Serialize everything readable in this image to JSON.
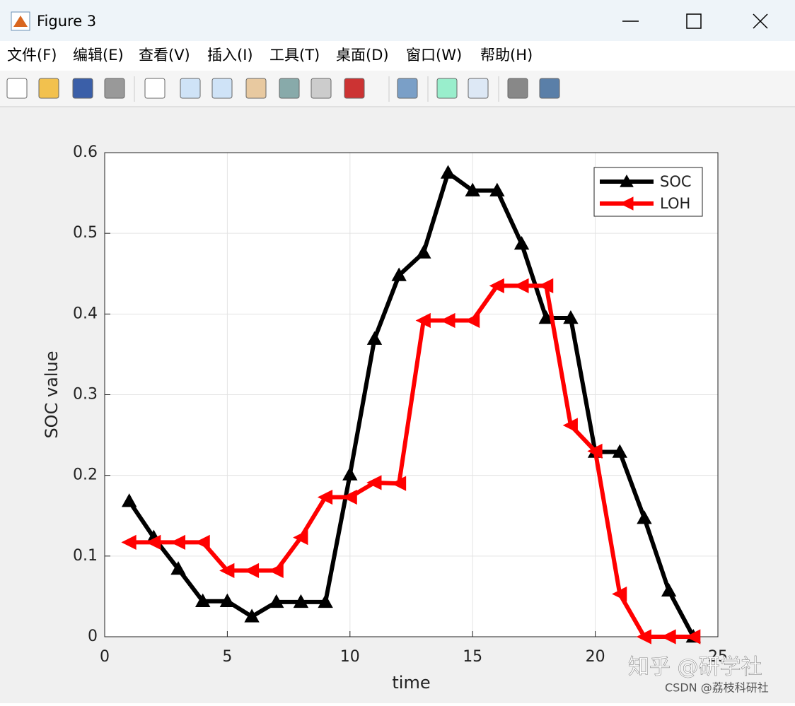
{
  "window": {
    "title": "Figure 3",
    "menu": [
      "文件(F)",
      "编辑(E)",
      "查看(V)",
      "插入(I)",
      "工具(T)",
      "桌面(D)",
      "窗口(W)",
      "帮助(H)"
    ]
  },
  "watermark": [
    "知乎 @研学社",
    "CSDN @荔枝科研社"
  ],
  "chart_data": {
    "type": "line",
    "x_label": "time",
    "y_label": "SOC value",
    "x": [
      1,
      2,
      3,
      4,
      5,
      6,
      7,
      8,
      9,
      10,
      11,
      12,
      13,
      14,
      15,
      16,
      17,
      18,
      19,
      20,
      21,
      22,
      23,
      24
    ],
    "series": [
      {
        "name": "SOC",
        "color": "#000000",
        "marker": "triangle-up",
        "values": [
          0.168,
          0.123,
          0.084,
          0.044,
          0.044,
          0.025,
          0.043,
          0.043,
          0.043,
          0.201,
          0.369,
          0.448,
          0.476,
          0.575,
          0.553,
          0.553,
          0.487,
          0.395,
          0.395,
          0.229,
          0.229,
          0.147,
          0.057,
          0
        ]
      },
      {
        "name": "LOH",
        "color": "#ff0000",
        "marker": "triangle-left",
        "values": [
          0.117,
          0.117,
          0.117,
          0.117,
          0.082,
          0.082,
          0.082,
          0.123,
          0.173,
          0.173,
          0.191,
          0.19,
          0.392,
          0.392,
          0.392,
          0.435,
          0.435,
          0.435,
          0.262,
          0.23,
          0.053,
          0,
          0,
          0
        ]
      }
    ],
    "xlim": [
      0,
      25
    ],
    "xticks": [
      0,
      5,
      10,
      15,
      20,
      25
    ],
    "ylim": [
      0,
      0.6
    ],
    "yticks": [
      0,
      0.1,
      0.2,
      0.3,
      0.4,
      0.5,
      0.6
    ],
    "grid": true,
    "legend": "northeast"
  }
}
